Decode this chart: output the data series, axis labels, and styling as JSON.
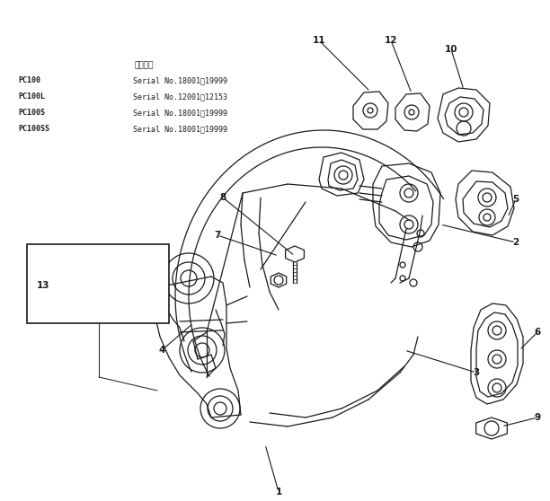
{
  "bg_color": "#ffffff",
  "line_color": "#1a1a1a",
  "fig_width": 6.12,
  "fig_height": 5.58,
  "dpi": 100,
  "title_header": "適用号機",
  "serial_lines": [
    [
      "PC100",
      "Serial No.18001～19999"
    ],
    [
      "PC100L",
      "Serial No.12001～12153"
    ],
    [
      "PC100S",
      "Serial No.18001～19999"
    ],
    [
      "PC100SS",
      "Serial No.18001～19999"
    ]
  ],
  "lw": 0.9
}
